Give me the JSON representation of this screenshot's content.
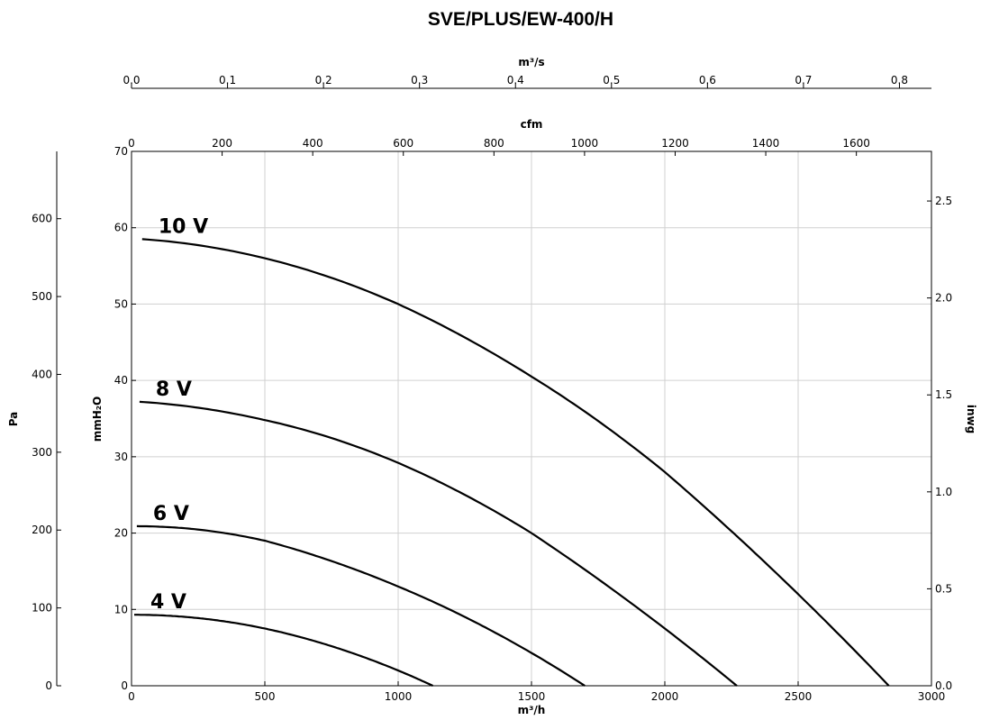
{
  "chart_data": {
    "type": "line",
    "title": "SVE/PLUS/EW-400/H",
    "xlabel": "m³/h",
    "ylabel": "mmH₂O",
    "x_top1_label": "m³/s",
    "x_top2_label": "cfm",
    "y_left2_label": "Pa",
    "y_right_label": "inwg",
    "xlim": [
      0,
      3000
    ],
    "ylim": [
      0,
      70
    ],
    "grid": true,
    "x_ticks": [
      "0",
      "500",
      "1000",
      "1500",
      "2000",
      "2500",
      "3000"
    ],
    "y_ticks": [
      "0",
      "10",
      "20",
      "30",
      "40",
      "50",
      "60",
      "70"
    ],
    "m3s_ticks": [
      "0.0",
      "0.1",
      "0.2",
      "0.3",
      "0.4",
      "0.5",
      "0.6",
      "0.7",
      "0.8"
    ],
    "cfm_ticks": [
      "0",
      "200",
      "400",
      "600",
      "800",
      "1000",
      "1200",
      "1400",
      "1600"
    ],
    "pa_ticks": [
      "0",
      "100",
      "200",
      "300",
      "400",
      "500",
      "600"
    ],
    "inwg_ticks": [
      "0.0",
      "0.5",
      "1.0",
      "1.5",
      "2.0",
      "2.5"
    ],
    "series": [
      {
        "name": "10 V",
        "x": [
          40,
          500,
          1000,
          1500,
          2000,
          2500,
          2840
        ],
        "y": [
          58.5,
          56,
          50,
          40.5,
          28,
          12,
          0
        ]
      },
      {
        "name": "8 V",
        "x": [
          30,
          500,
          1000,
          1500,
          2000,
          2270
        ],
        "y": [
          37.2,
          34.8,
          29.2,
          20,
          7.5,
          0
        ]
      },
      {
        "name": "6 V",
        "x": [
          20,
          500,
          1000,
          1500,
          1700
        ],
        "y": [
          20.9,
          19,
          13,
          4.3,
          0
        ]
      },
      {
        "name": "4 V",
        "x": [
          10,
          500,
          1000,
          1130
        ],
        "y": [
          9.3,
          7.5,
          2,
          0
        ]
      }
    ]
  }
}
